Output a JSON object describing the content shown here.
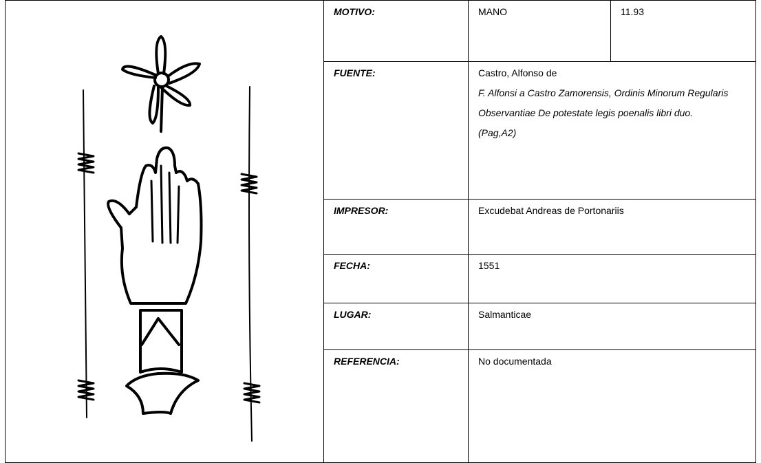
{
  "record": {
    "motivo": {
      "label": "MOTIVO:",
      "value": "MANO",
      "code": "11.93"
    },
    "fuente": {
      "label": "FUENTE:",
      "author": "Castro, Alfonso de",
      "title": "F. Alfonsi a Castro Zamorensis, Ordinis Minorum Regularis Observantiae De potestate legis poenalis libri duo.",
      "page": "(Pag,A2)"
    },
    "impresor": {
      "label": "IMPRESOR:",
      "value": "Excudebat Andreas de Portonariis"
    },
    "fecha": {
      "label": "FECHA:",
      "value": "1551"
    },
    "lugar": {
      "label": "LUGAR:",
      "value": "Salmanticae"
    },
    "referencia": {
      "label": "REFERENCIA:",
      "value": "No documentada"
    }
  }
}
